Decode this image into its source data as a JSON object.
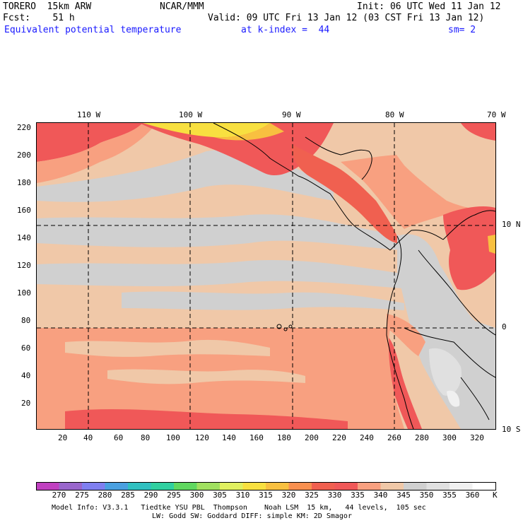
{
  "header": {
    "model": "TORERO  15km ARW",
    "org": "NCAR/MMM",
    "init": "Init: 06 UTC Wed 11 Jan 12",
    "fcst": "Fcst:    51 h",
    "valid": "Valid: 09 UTC Fri 13 Jan 12 (03 CST Fri 13 Jan 12)",
    "field": "Equivalent potential temperature",
    "level": "at k-index =  44",
    "smoothing": "sm= 2"
  },
  "map": {
    "lon_labels": [
      "110 W",
      "100 W",
      "90 W",
      "80 W",
      "70 W"
    ],
    "lat_labels": [
      "10 N",
      "0",
      "10 S"
    ],
    "grid_y_labels": [
      "220",
      "200",
      "180",
      "160",
      "140",
      "120",
      "100",
      "80",
      "60",
      "40",
      "20"
    ],
    "grid_x_labels": [
      "20",
      "40",
      "60",
      "80",
      "100",
      "120",
      "140",
      "160",
      "180",
      "200",
      "220",
      "240",
      "260",
      "280",
      "300",
      "320"
    ]
  },
  "colorbar": {
    "unit": "K",
    "levels": [
      "270",
      "275",
      "280",
      "285",
      "290",
      "295",
      "300",
      "305",
      "310",
      "315",
      "320",
      "325",
      "330",
      "335",
      "340",
      "345",
      "350",
      "355",
      "360"
    ],
    "colors": [
      "#c040c0",
      "#9966cc",
      "#7f7ff0",
      "#4aa0e0",
      "#30c0c0",
      "#30d0a0",
      "#60d860",
      "#a0e060",
      "#e0f060",
      "#f8e040",
      "#f8c040",
      "#f89050",
      "#f06050",
      "#f05858",
      "#f8a080",
      "#f0c8a8",
      "#d0d0d0",
      "#e0e0e0",
      "#f0f0f0",
      "#ffffff"
    ]
  },
  "footer": {
    "line1": "Model Info: V3.3.1   Tiedtke YSU PBL  Thompson    Noah LSM  15 km,   44 levels,  105 sec",
    "line2": "LW: Godd SW: Goddard DIFF: simple KM: 2D Smagor"
  }
}
